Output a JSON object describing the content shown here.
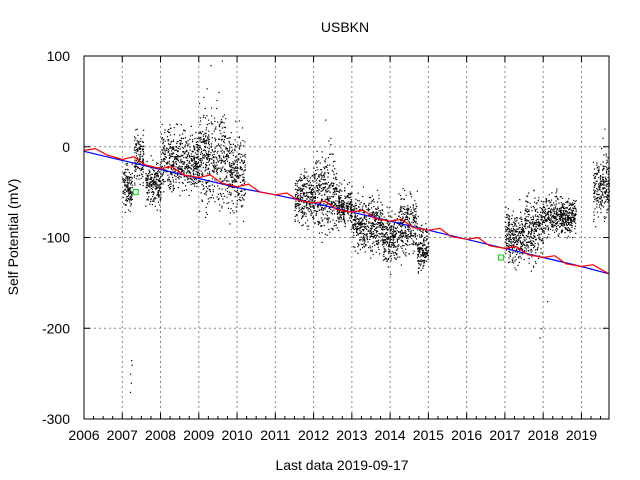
{
  "chart_data": {
    "type": "scatter",
    "title": "USBKN",
    "xlabel": "Last data 2019-09-17",
    "ylabel": "Self Potential (mV)",
    "xlim": [
      2006.0,
      2019.72
    ],
    "ylim": [
      -300,
      100
    ],
    "x_ticks": [
      "2006",
      "2007",
      "2008",
      "2009",
      "2010",
      "2011",
      "2012",
      "2013",
      "2014",
      "2015",
      "2016",
      "2017",
      "2018",
      "2019"
    ],
    "y_ticks": [
      "100",
      "0",
      "-100",
      "-200",
      "-300"
    ],
    "grid": true,
    "legend": "none",
    "colors": {
      "points": "#000000",
      "trend_blue": "#0000ff",
      "trend_red": "#ff0000",
      "marker": "#00cc00"
    },
    "series": [
      {
        "kind": "scatter-clusters",
        "clusters": [
          {
            "x0": 2007.0,
            "x1": 2007.25,
            "center": -45,
            "spread": 25
          },
          {
            "x0": 2007.3,
            "x1": 2007.55,
            "center": -10,
            "spread": 30
          },
          {
            "x0": 2007.6,
            "x1": 2008.0,
            "center": -40,
            "spread": 25
          },
          {
            "x0": 2008.0,
            "x1": 2009.0,
            "center": -15,
            "spread": 35
          },
          {
            "x0": 2009.0,
            "x1": 2009.7,
            "center": -10,
            "spread": 55
          },
          {
            "x0": 2009.7,
            "x1": 2010.2,
            "center": -30,
            "spread": 45
          },
          {
            "x0": 2011.5,
            "x1": 2012.0,
            "center": -55,
            "spread": 30
          },
          {
            "x0": 2012.0,
            "x1": 2012.6,
            "center": -50,
            "spread": 45
          },
          {
            "x0": 2012.6,
            "x1": 2013.0,
            "center": -65,
            "spread": 25
          },
          {
            "x0": 2013.0,
            "x1": 2013.8,
            "center": -85,
            "spread": 30
          },
          {
            "x0": 2013.8,
            "x1": 2014.2,
            "center": -100,
            "spread": 30
          },
          {
            "x0": 2014.2,
            "x1": 2014.7,
            "center": -85,
            "spread": 35
          },
          {
            "x0": 2014.7,
            "x1": 2015.0,
            "center": -110,
            "spread": 25
          },
          {
            "x0": 2017.0,
            "x1": 2017.5,
            "center": -100,
            "spread": 30
          },
          {
            "x0": 2017.5,
            "x1": 2018.0,
            "center": -90,
            "spread": 40
          },
          {
            "x0": 2018.0,
            "x1": 2018.85,
            "center": -75,
            "spread": 22
          },
          {
            "x0": 2019.3,
            "x1": 2019.72,
            "center": -45,
            "spread": 35
          }
        ],
        "outliers": [
          {
            "x": 2007.2,
            "y": -250
          },
          {
            "x": 2007.22,
            "y": -260
          },
          {
            "x": 2007.24,
            "y": -240
          },
          {
            "x": 2007.2,
            "y": -270
          },
          {
            "x": 2007.23,
            "y": -235
          },
          {
            "x": 2009.3,
            "y": 90
          },
          {
            "x": 2009.6,
            "y": 95
          },
          {
            "x": 2012.3,
            "y": 30
          },
          {
            "x": 2014.0,
            "y": -140
          },
          {
            "x": 2017.9,
            "y": -210
          },
          {
            "x": 2017.95,
            "y": -200
          },
          {
            "x": 2018.1,
            "y": -170
          },
          {
            "x": 2019.6,
            "y": 20
          },
          {
            "x": 2019.55,
            "y": 10
          }
        ]
      },
      {
        "kind": "line",
        "color": "#0000ff",
        "x": [
          2006.0,
          2007.0,
          2008.0,
          2009.0,
          2010.0,
          2011.0,
          2012.0,
          2013.0,
          2014.0,
          2015.0,
          2016.0,
          2017.0,
          2018.0,
          2019.0,
          2019.72
        ],
        "y": [
          -5,
          -15,
          -25,
          -35,
          -45,
          -53,
          -62,
          -72,
          -82,
          -92,
          -102,
          -112,
          -122,
          -132,
          -140
        ]
      },
      {
        "kind": "line",
        "color": "#ff0000",
        "x": [
          2006.0,
          2006.3,
          2006.6,
          2007.0,
          2007.3,
          2007.6,
          2008.0,
          2008.3,
          2008.6,
          2009.0,
          2009.3,
          2009.6,
          2010.0,
          2010.3,
          2010.6,
          2011.0,
          2011.3,
          2011.6,
          2012.0,
          2012.3,
          2012.6,
          2013.0,
          2013.3,
          2013.6,
          2014.0,
          2014.3,
          2014.6,
          2015.0,
          2015.3,
          2015.6,
          2016.0,
          2016.3,
          2016.6,
          2017.0,
          2017.3,
          2017.6,
          2018.0,
          2018.3,
          2018.6,
          2019.0,
          2019.3,
          2019.72
        ],
        "y": [
          -4,
          -2,
          -9,
          -14,
          -11,
          -20,
          -24,
          -22,
          -31,
          -34,
          -31,
          -40,
          -44,
          -41,
          -50,
          -53,
          -51,
          -59,
          -62,
          -60,
          -69,
          -72,
          -70,
          -79,
          -82,
          -80,
          -89,
          -92,
          -90,
          -99,
          -102,
          -100,
          -109,
          -112,
          -110,
          -119,
          -122,
          -120,
          -129,
          -132,
          -130,
          -140
        ]
      },
      {
        "kind": "markers",
        "color": "#00cc00",
        "x": [
          2007.35,
          2016.9
        ],
        "y": [
          -50,
          -122
        ]
      }
    ]
  }
}
